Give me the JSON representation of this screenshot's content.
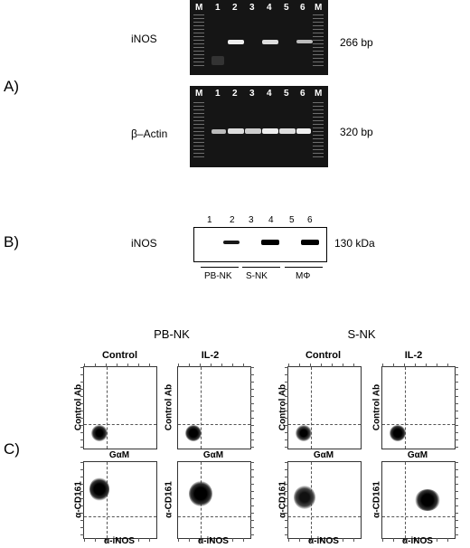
{
  "panel_a": {
    "label": "A)",
    "gel_top": {
      "lane_labels": [
        "M",
        "1",
        "2",
        "3",
        "4",
        "5",
        "6",
        "M"
      ],
      "row_label": "iNOS",
      "size_label": "266 bp",
      "band_lanes": [
        2,
        4,
        6
      ]
    },
    "gel_bottom": {
      "lane_labels": [
        "M",
        "1",
        "2",
        "3",
        "4",
        "5",
        "6",
        "M"
      ],
      "row_label": "β–Actin",
      "size_label": "320 bp",
      "band_lanes": [
        1,
        2,
        3,
        4,
        5,
        6
      ]
    }
  },
  "panel_b": {
    "label": "B)",
    "row_label": "iNOS",
    "lane_labels": [
      "1",
      "2",
      "3",
      "4",
      "5",
      "6"
    ],
    "size_label": "130 kDa",
    "band_lanes": [
      2,
      4,
      6
    ],
    "groups": [
      "PB-NK",
      "S-NK",
      "MΦ"
    ]
  },
  "panel_c": {
    "label": "C)",
    "group_headers": [
      "PB-NK",
      "S-NK"
    ],
    "column_headers": [
      "Control",
      "IL-2",
      "Control",
      "IL-2"
    ],
    "top_row": {
      "y_label": "Control Ab",
      "x_label": "GαM"
    },
    "bottom_row": {
      "y_label": "α-CD161",
      "x_label": "α-iNOS"
    }
  }
}
